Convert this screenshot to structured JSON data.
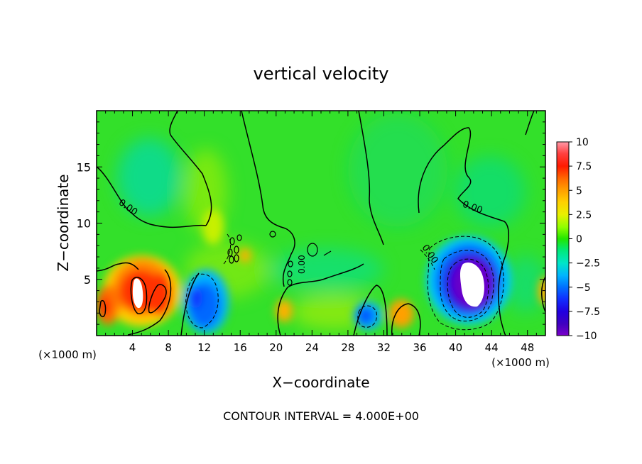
{
  "chart_data": {
    "type": "heatmap",
    "title": "vertical velocity",
    "xlabel": "X−coordinate",
    "ylabel": "Z−coordinate",
    "x_units_left": "(×1000 m)",
    "x_units_right": "(×1000 m)",
    "footer": "CONTOUR INTERVAL = 4.000E+00",
    "xlim": [
      0,
      50
    ],
    "ylim": [
      0,
      20
    ],
    "x_ticks": [
      4,
      8,
      12,
      16,
      20,
      24,
      28,
      32,
      36,
      40,
      44,
      48
    ],
    "y_ticks": [
      5,
      10,
      15
    ],
    "colorbar": {
      "labels": [
        "10",
        "7.5",
        "5",
        "2.5",
        "0",
        "−2.5",
        "−5",
        "−7.5",
        "−10"
      ],
      "values": [
        10,
        7.5,
        5,
        2.5,
        0,
        -2.5,
        -5,
        -7.5,
        -10
      ],
      "range": [
        -10,
        10
      ]
    },
    "contour_labels": [
      "0.00",
      "0.00",
      "0.00",
      "0.00"
    ],
    "features": [
      {
        "x": 5,
        "z": 3.8,
        "w": 12,
        "kind": "updraft core (exceeds +10)"
      },
      {
        "x": 7,
        "z": 3.5,
        "w": 6
      },
      {
        "x": 1,
        "z": 2.5,
        "w": 5
      },
      {
        "x": 11,
        "z": 3,
        "w": -6
      },
      {
        "x": 30,
        "z": 2,
        "w": -6
      },
      {
        "x": 34,
        "z": 2,
        "w": 4
      },
      {
        "x": 20.5,
        "z": 2.5,
        "w": 4
      },
      {
        "x": 41,
        "z": 4,
        "w": -12,
        "kind": "downdraft core (below -10)"
      },
      {
        "x": 49,
        "z": 4,
        "w": 4
      },
      {
        "x": 8,
        "z": 15,
        "w": -2
      }
    ]
  }
}
